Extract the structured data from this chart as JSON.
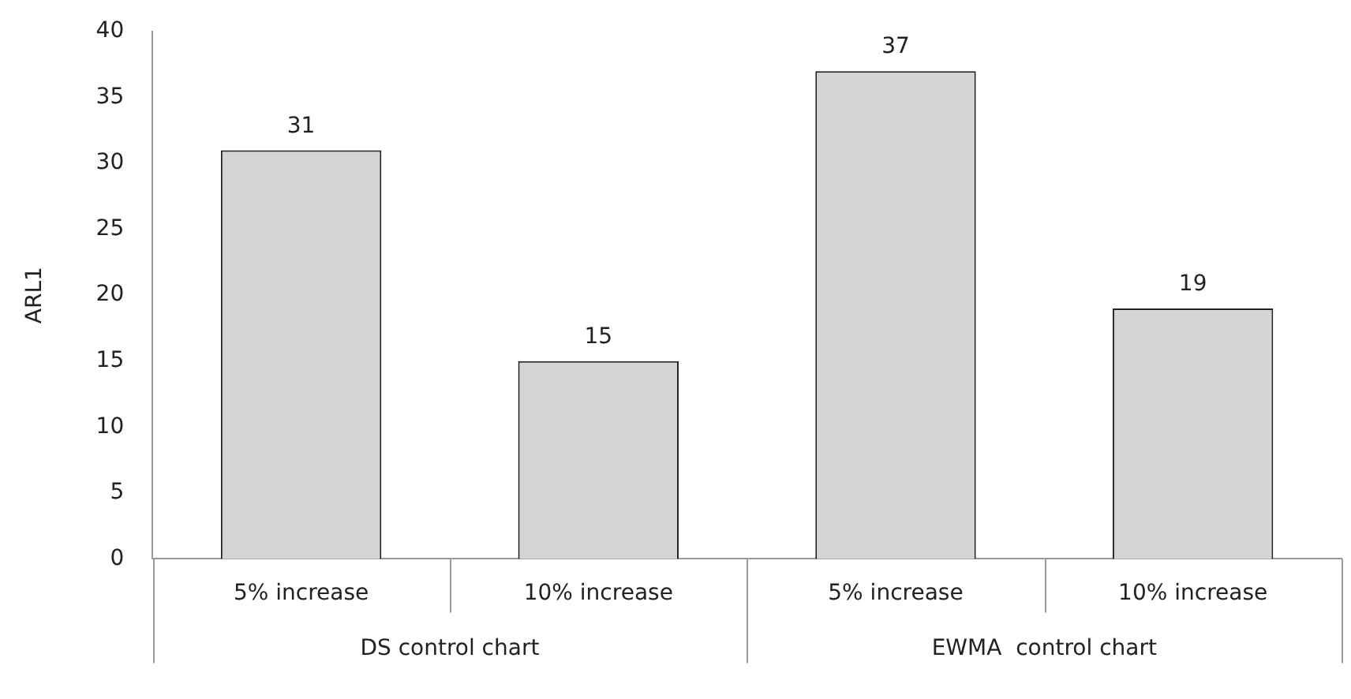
{
  "chart_data": {
    "type": "bar",
    "ylabel": "ARL1",
    "categories": [
      "5% increase",
      "10% increase",
      "5% increase",
      "10% increase"
    ],
    "values": [
      31,
      15,
      37,
      19
    ],
    "color": "#d4d4d4",
    "ylim": [
      0,
      40
    ],
    "yticks": [
      0,
      5,
      10,
      15,
      20,
      25,
      30,
      35,
      40
    ],
    "grid": false,
    "legend": false,
    "data_labels": true,
    "annotations": [
      "DS control chart",
      "EWMA  control chart"
    ]
  }
}
